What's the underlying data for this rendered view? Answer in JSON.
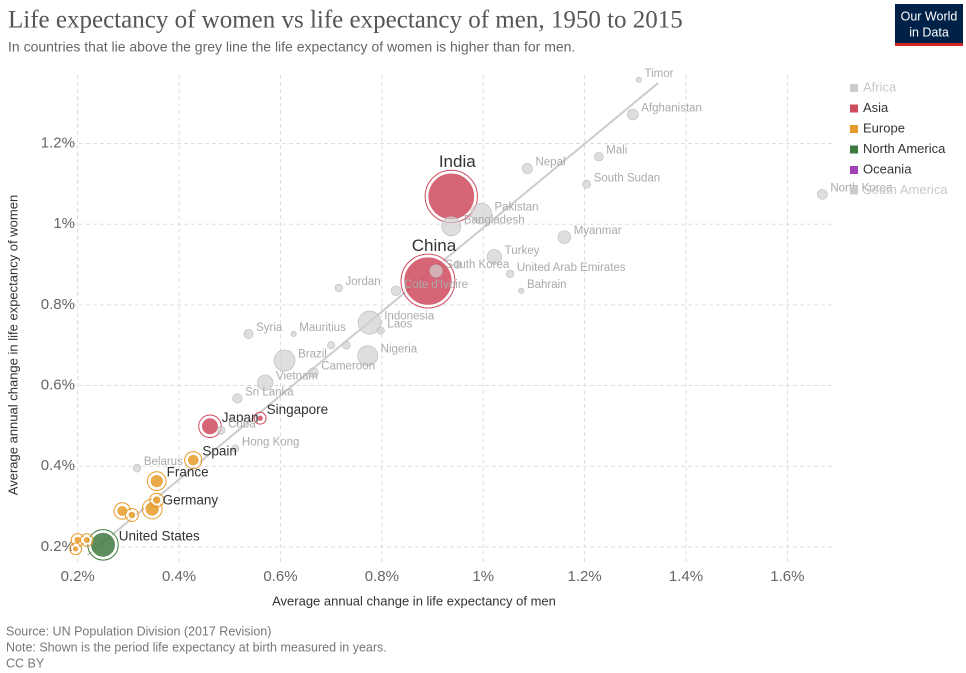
{
  "chart_data": {
    "type": "scatter",
    "title": "Life expectancy of women vs life expectancy of men, 1950 to 2015",
    "subtitle": "In countries that lie above the grey line the life expectancy of women is higher than for men.",
    "x_label": "Average annual change in life expectancy of men",
    "y_label": "Average annual change in life expectancy of women",
    "source": "Source: UN Population Division (2017 Revision)",
    "note": "Note: Shown is the period life expectancy at birth measured in years.",
    "license": "CC BY",
    "logo": [
      "Our World",
      "in Data"
    ],
    "xlim": [
      0.175,
      1.69
    ],
    "ylim": [
      0.155,
      1.37
    ],
    "xticks": [
      {
        "value": 0.2,
        "label": "0.2%"
      },
      {
        "value": 0.4,
        "label": "0.4%"
      },
      {
        "value": 0.6,
        "label": "0.6%"
      },
      {
        "value": 0.8,
        "label": "0.8%"
      },
      {
        "value": 1,
        "label": "1%"
      },
      {
        "value": 1.2,
        "label": "1.2%"
      },
      {
        "value": 1.4,
        "label": "1.4%"
      },
      {
        "value": 1.6,
        "label": "1.6%"
      }
    ],
    "yticks": [
      {
        "value": 0.2,
        "label": "0.2%"
      },
      {
        "value": 0.4,
        "label": "0.4%"
      },
      {
        "value": 0.6,
        "label": "0.6%"
      },
      {
        "value": 0.8,
        "label": "0.8%"
      },
      {
        "value": 1,
        "label": "1%"
      },
      {
        "value": 1.2,
        "label": "1.2%"
      }
    ],
    "grid": true,
    "legend": "top-right",
    "reference_line": {
      "color": "#cccccc",
      "x": [
        0.22,
        1.345
      ],
      "values": [
        0.18,
        1.35
      ]
    },
    "series": [
      {
        "name": "Africa",
        "color": "#cccccc",
        "muted": true,
        "labels": [
          "Mali",
          "South Sudan",
          "Cote d'Ivoire",
          "Mauritius",
          "Nigeria",
          "Cameroon",
          null,
          null
        ],
        "x": [
          1.228,
          1.204,
          0.828,
          0.626,
          0.772,
          0.665,
          0.95,
          0.7
        ],
        "values": [
          1.168,
          1.099,
          0.835,
          0.728,
          0.674,
          0.632,
          0.9,
          0.7
        ],
        "sizes": [
          17,
          12,
          23,
          1.3,
          180,
          23,
          10,
          8
        ],
        "point_colors": [
          "#d0d0d0",
          "#d0d0d0",
          "#d0d0d0",
          "#d0d0d0",
          "#d0d0d0",
          "#d0d0d0",
          "#d0d0d0",
          "#d0d0d0"
        ]
      },
      {
        "name": "Asia",
        "color": "#cf4b5e",
        "muted": false,
        "labels": [
          "Timor",
          "Afghanistan",
          "Nepal",
          "North Korea",
          "India",
          "Pakistan",
          "Bangladesh",
          "Myanmar",
          "Turkey",
          "China",
          "South Korea",
          "United Arab Emirates",
          "Bahrain",
          "Jordan",
          "Indonesia",
          "Laos",
          "Syria",
          "Vietnam",
          "Sri Lanka",
          "Japan",
          "Singapore",
          "Hong Kong"
        ],
        "x": [
          1.307,
          1.295,
          1.087,
          1.669,
          0.937,
          0.996,
          0.937,
          1.16,
          1.022,
          0.891,
          0.907,
          1.053,
          1.075,
          0.715,
          0.776,
          0.798,
          0.537,
          0.57,
          0.515,
          0.461,
          0.56,
          0.511
        ],
        "values": [
          1.358,
          1.272,
          1.138,
          1.074,
          1.069,
          1.027,
          0.995,
          0.968,
          0.919,
          0.859,
          0.884,
          0.877,
          0.835,
          0.842,
          0.756,
          0.736,
          0.728,
          0.607,
          0.568,
          0.499,
          0.519,
          0.444
        ],
        "sizes": [
          1.2,
          33,
          28,
          25,
          1300,
          190,
          160,
          53,
          78,
          1400,
          50,
          9,
          1.4,
          9,
          255,
          7,
          19,
          92,
          21,
          127,
          5.5,
          7
        ],
        "point_colors": [
          "#d0d0d0",
          "#d0d0d0",
          "#d0d0d0",
          "#d0d0d0",
          "#cf4b5e",
          "#d0d0d0",
          "#d0d0d0",
          "#d0d0d0",
          "#d0d0d0",
          "#cf4b5e",
          "#d0d0d0",
          "#d0d0d0",
          "#d0d0d0",
          "#d0d0d0",
          "#d0d0d0",
          "#d0d0d0",
          "#d0d0d0",
          "#d0d0d0",
          "#d0d0d0",
          "#cf4b5e",
          "#cf4b5e",
          "#d0d0d0"
        ]
      },
      {
        "name": "Europe",
        "color": "#e89b2a",
        "muted": false,
        "labels": [
          "Spain",
          "Belarus",
          "France",
          "Germany",
          null,
          null,
          null,
          null,
          null,
          null
        ],
        "x": [
          0.428,
          0.317,
          0.356,
          0.347,
          0.2,
          0.218,
          0.288,
          0.307,
          0.356,
          0.196
        ],
        "values": [
          0.415,
          0.395,
          0.363,
          0.294,
          0.217,
          0.217,
          0.289,
          0.279,
          0.316,
          0.195
        ],
        "sizes": [
          46,
          9.5,
          66,
          81,
          10,
          8,
          38,
          11,
          17,
          5
        ],
        "point_colors": [
          "#e89b2a",
          "#d0d0d0",
          "#e89b2a",
          "#e89b2a",
          "#e89b2a",
          "#e89b2a",
          "#e89b2a",
          "#e89b2a",
          "#e89b2a",
          "#e89b2a"
        ]
      },
      {
        "name": "North America",
        "color": "#3e7a3f",
        "muted": false,
        "labels": [
          "United States",
          "Cuba"
        ],
        "x": [
          0.25,
          0.483
        ],
        "values": [
          0.205,
          0.489
        ],
        "sizes": [
          320,
          11
        ],
        "point_colors": [
          "#3e7a3f",
          "#d0d0d0"
        ]
      },
      {
        "name": "Oceania",
        "color": "#a33fb8",
        "muted": false,
        "labels": [],
        "x": [],
        "values": [],
        "sizes": [],
        "point_colors": []
      },
      {
        "name": "South America",
        "color": "#cccccc",
        "muted": true,
        "labels": [
          "Brazil",
          null
        ],
        "x": [
          0.608,
          0.73
        ],
        "values": [
          0.662,
          0.7
        ],
        "sizes": [
          205,
          10
        ],
        "point_colors": [
          "#d0d0d0",
          "#d0d0d0"
        ]
      }
    ]
  }
}
